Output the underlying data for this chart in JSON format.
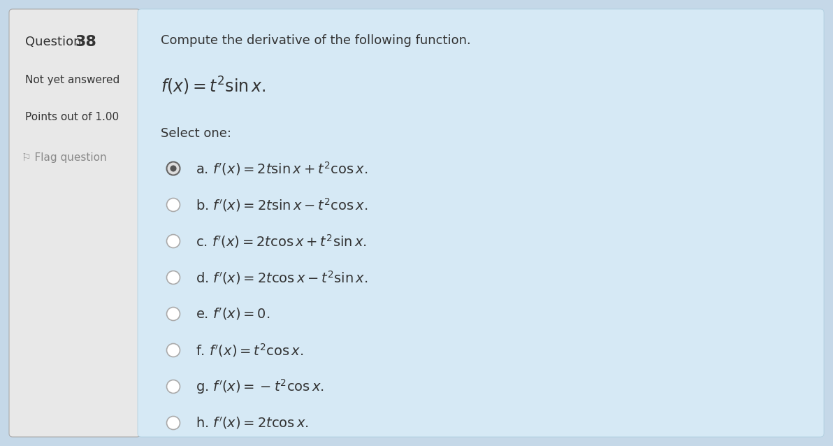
{
  "bg_color_outer": "#c5d8e8",
  "bg_color_left": "#e8e8e8",
  "bg_color_right": "#d6e9f5",
  "question_label": "Question ",
  "question_number": "38",
  "not_yet": "Not yet answered",
  "points": "Points out of 1.00",
  "flag": "Flag question",
  "prompt": "Compute the derivative of the following function.",
  "function_def": "$f(x) = t^2 \\sin x.$",
  "select_one": "Select one:",
  "options": [
    {
      "label": "a.",
      "formula": "$f'(x) = 2t\\sin x + t^2 \\cos x.$",
      "selected": true
    },
    {
      "label": "b.",
      "formula": "$f'(x) = 2t\\sin x - t^2 \\cos x.$",
      "selected": false
    },
    {
      "label": "c.",
      "formula": "$f'(x) = 2t\\cos x + t^2 \\sin x.$",
      "selected": false
    },
    {
      "label": "d.",
      "formula": "$f'(x) = 2t\\cos x - t^2 \\sin x.$",
      "selected": false
    },
    {
      "label": "e.",
      "formula": "$f'(x) = 0.$",
      "selected": false
    },
    {
      "label": "f.",
      "formula": "$f'(x) = t^2 \\cos x.$",
      "selected": false
    },
    {
      "label": "g.",
      "formula": "$f'(x) = -t^2 \\cos x.$",
      "selected": false
    },
    {
      "label": "h.",
      "formula": "$f'(x) = 2t\\cos x.$",
      "selected": false
    }
  ],
  "selected_ring_color": "#555555",
  "selected_dot_color": "#555555",
  "unselected_ring_color": "#999999",
  "text_color": "#333333",
  "left_text_color": "#333333",
  "border_color": "#aaaaaa"
}
